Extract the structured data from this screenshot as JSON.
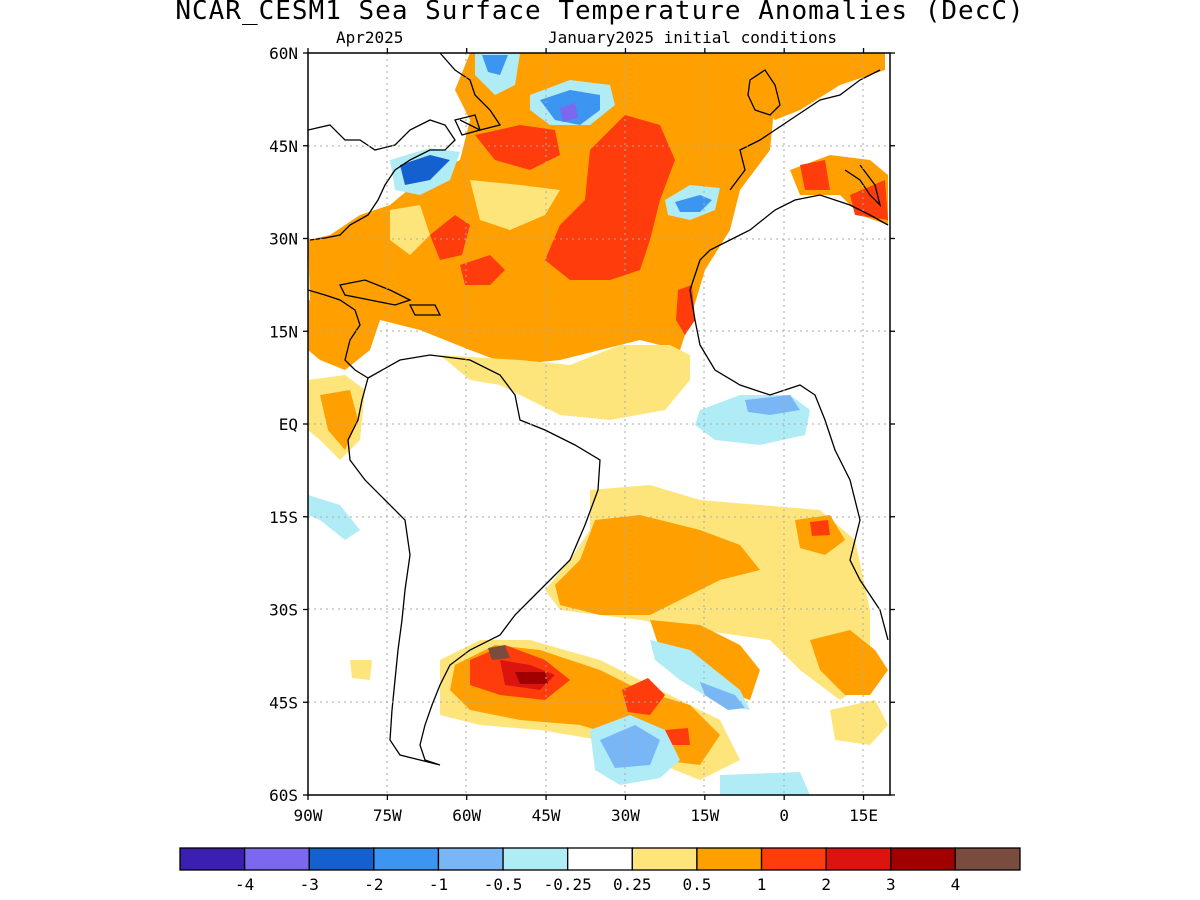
{
  "title": "NCAR_CESM1 Sea Surface Temperature Anomalies (DecC)",
  "subtitle_left": "Apr2025",
  "subtitle_right": "January2025 initial conditions",
  "map": {
    "projection": "latlon",
    "lon_range": [
      -90,
      20
    ],
    "lat_range": [
      -60,
      60
    ],
    "grid": "dotted",
    "lat_ticks": [
      {
        "lat": 60,
        "label": "60N"
      },
      {
        "lat": 45,
        "label": "45N"
      },
      {
        "lat": 30,
        "label": "30N"
      },
      {
        "lat": 15,
        "label": "15N"
      },
      {
        "lat": 0,
        "label": "EQ"
      },
      {
        "lat": -15,
        "label": "15S"
      },
      {
        "lat": -30,
        "label": "30S"
      },
      {
        "lat": -45,
        "label": "45S"
      },
      {
        "lat": -60,
        "label": "60S"
      }
    ],
    "lon_ticks": [
      {
        "lon": -90,
        "label": "90W"
      },
      {
        "lon": -75,
        "label": "75W"
      },
      {
        "lon": -60,
        "label": "60W"
      },
      {
        "lon": -45,
        "label": "45W"
      },
      {
        "lon": -30,
        "label": "30W"
      },
      {
        "lon": -15,
        "label": "15W"
      },
      {
        "lon": 0,
        "label": "0"
      },
      {
        "lon": 15,
        "label": "15E"
      }
    ]
  },
  "colorbar": {
    "colors": [
      "#3a1fb0",
      "#7b68ee",
      "#1560cf",
      "#3c95f0",
      "#78b6f5",
      "#b0ecf6",
      "#ffffff",
      "#fde57c",
      "#ffa000",
      "#ff3c0c",
      "#dc1410",
      "#a00000",
      "#7a4c3e"
    ],
    "labels": [
      "-4",
      "-3",
      "-2",
      "-1",
      "-0.5",
      "-0.25",
      "0.25",
      "0.5",
      "1",
      "2",
      "3",
      "4"
    ]
  },
  "colors": {
    "neutral": "#ffffff",
    "weak_warm": "#fde57c",
    "warm": "#ffa000",
    "hot": "#ff3c0c",
    "very_hot": "#dc1410",
    "extreme": "#7a4c3e",
    "weak_cool": "#b0ecf6",
    "cool": "#78b6f5",
    "cold": "#3c95f0",
    "colder": "#1560cf",
    "coldest": "#7b68ee"
  }
}
